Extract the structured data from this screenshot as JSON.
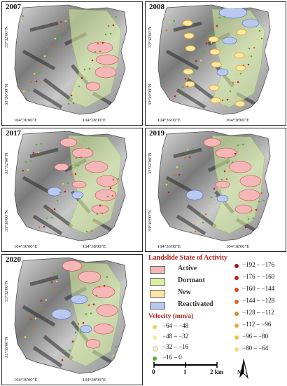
{
  "panels": [
    {
      "id": "p2007",
      "year": "2007",
      "lat_top": "33°32'00\"N",
      "lat_bot": "33°30'00\"N",
      "lon_left": "104°36'00\"E",
      "lon_right": "104°38'00\"E"
    },
    {
      "id": "p2008",
      "year": "2008",
      "lat_top": "33°32'00\"N",
      "lat_bot": "33°30'00\"N",
      "lon_left": "104°36'00\"E",
      "lon_right": "104°38'00\"E"
    },
    {
      "id": "p2017",
      "year": "2017",
      "lat_top": "33°32'00\"N",
      "lat_bot": "33°30'00\"N",
      "lon_left": "104°36'00\"E",
      "lon_right": "104°38'00\"E"
    },
    {
      "id": "p2019",
      "year": "2019",
      "lat_top": "33°32'00\"N",
      "lat_bot": "33°30'00\"N",
      "lon_left": "104°36'00\"E",
      "lon_right": "104°38'00\"E"
    },
    {
      "id": "p2020",
      "year": "2020",
      "lat_top": "33°32'00\"N",
      "lat_bot": "33°30'00\"N",
      "lon_left": "104°36'00\"E",
      "lon_right": "104°38'00\"E"
    }
  ],
  "legend": {
    "title": "Landslide State of Activity",
    "states": [
      {
        "label": "Active",
        "color": "#f4b6b6"
      },
      {
        "label": "Dormant",
        "color": "#d9f0a3"
      },
      {
        "label": "New",
        "color": "#fbe7a1"
      },
      {
        "label": "Reactivated",
        "color": "#b9c8ee"
      }
    ],
    "velocity_title": "Velocity (mm/a)",
    "velocity_left": [
      {
        "label": "−64 – −48",
        "color": "#e3d34a"
      },
      {
        "label": "−48 – −32",
        "color": "#f2eaa0"
      },
      {
        "label": "−32 – −16",
        "color": "#f5f0b8"
      },
      {
        "label": "−16 – 0",
        "color": "#58b030"
      }
    ],
    "velocity_right": [
      {
        "label": "−192 – −176",
        "color": "#a01515"
      },
      {
        "label": "−176 – −160",
        "color": "#c02418"
      },
      {
        "label": "−160 – −144",
        "color": "#d04a20"
      },
      {
        "label": "−144 – −128",
        "color": "#d86a28"
      },
      {
        "label": "−128 – −112",
        "color": "#e08a30"
      },
      {
        "label": "−112 – −96",
        "color": "#e8a83a"
      },
      {
        "label": "−96 – −80",
        "color": "#f0c050"
      },
      {
        "label": "−80 – −64",
        "color": "#f2d870"
      }
    ],
    "scale": {
      "t0": "0",
      "t1": "1",
      "t2": "2 km"
    },
    "north": "N"
  }
}
